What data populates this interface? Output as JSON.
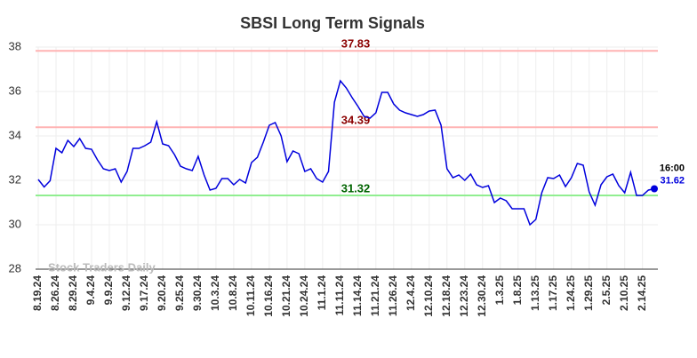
{
  "chart_data": {
    "type": "line",
    "title": "SBSI Long Term Signals",
    "watermark": "Stock Traders Daily",
    "color": "#0000dd",
    "grid": true,
    "ylim": [
      28,
      38
    ],
    "yticks": [
      28,
      30,
      32,
      34,
      36,
      38
    ],
    "hlines": [
      {
        "value": 37.83,
        "color": "#ffb3b3",
        "label_color": "#8b0000"
      },
      {
        "value": 34.39,
        "color": "#ffb3b3",
        "label_color": "#8b0000"
      },
      {
        "value": 31.32,
        "color": "#90ee90",
        "label_color": "#006400"
      }
    ],
    "last_time": "16:00",
    "categories": [
      "8.19.24",
      null,
      null,
      "8.26.24",
      null,
      null,
      "8.29.24",
      null,
      null,
      "9.4.24",
      null,
      null,
      "9.9.24",
      null,
      null,
      "9.12.24",
      null,
      null,
      "9.17.24",
      null,
      null,
      "9.20.24",
      null,
      null,
      "9.25.24",
      null,
      null,
      "9.30.24",
      null,
      null,
      "10.3.24",
      null,
      null,
      "10.8.24",
      null,
      null,
      "10.11.24",
      null,
      null,
      "10.16.24",
      null,
      null,
      "10.21.24",
      null,
      null,
      "10.24.24",
      null,
      null,
      "11.1.24",
      null,
      null,
      "11.11.24",
      null,
      null,
      "11.14.24",
      null,
      null,
      "11.21.24",
      null,
      null,
      "11.26.24",
      null,
      null,
      "12.4.24",
      null,
      null,
      "12.10.24",
      null,
      null,
      "12.18.24",
      null,
      null,
      "12.23.24",
      null,
      null,
      "12.30.24",
      null,
      null,
      "1.3.25",
      null,
      null,
      "1.8.25",
      null,
      null,
      "1.13.25",
      null,
      null,
      "1.17.25",
      null,
      null,
      "1.24.25",
      null,
      null,
      "1.29.25",
      null,
      null,
      "2.5.25",
      null,
      null,
      "2.10.25",
      null,
      null,
      "2.14.25",
      null,
      null
    ],
    "values": [
      32.04,
      31.7,
      31.98,
      33.44,
      33.24,
      33.8,
      33.52,
      33.88,
      33.44,
      33.4,
      32.92,
      32.52,
      32.44,
      32.52,
      31.92,
      32.4,
      33.44,
      33.44,
      33.56,
      33.72,
      34.64,
      33.64,
      33.56,
      33.16,
      32.64,
      32.52,
      32.44,
      33.08,
      32.24,
      31.56,
      31.64,
      32.08,
      32.08,
      31.8,
      32.04,
      31.88,
      32.8,
      33.04,
      33.72,
      34.48,
      34.6,
      34.0,
      32.84,
      33.32,
      33.2,
      32.4,
      32.52,
      32.08,
      31.92,
      32.4,
      35.52,
      36.48,
      36.16,
      35.72,
      35.32,
      34.88,
      34.8,
      35.04,
      35.96,
      35.96,
      35.44,
      35.16,
      35.04,
      34.96,
      34.88,
      34.96,
      35.12,
      35.16,
      34.48,
      32.52,
      32.12,
      32.24,
      32.0,
      32.28,
      31.8,
      31.68,
      31.76,
      31.0,
      31.2,
      31.08,
      30.72,
      30.72,
      30.72,
      30.0,
      30.24,
      31.44,
      32.12,
      32.08,
      32.24,
      31.72,
      32.12,
      32.76,
      32.68,
      31.48,
      30.88,
      31.8,
      32.16,
      32.28,
      31.76,
      31.44,
      32.36,
      31.32,
      31.32,
      31.56,
      31.62
    ]
  }
}
